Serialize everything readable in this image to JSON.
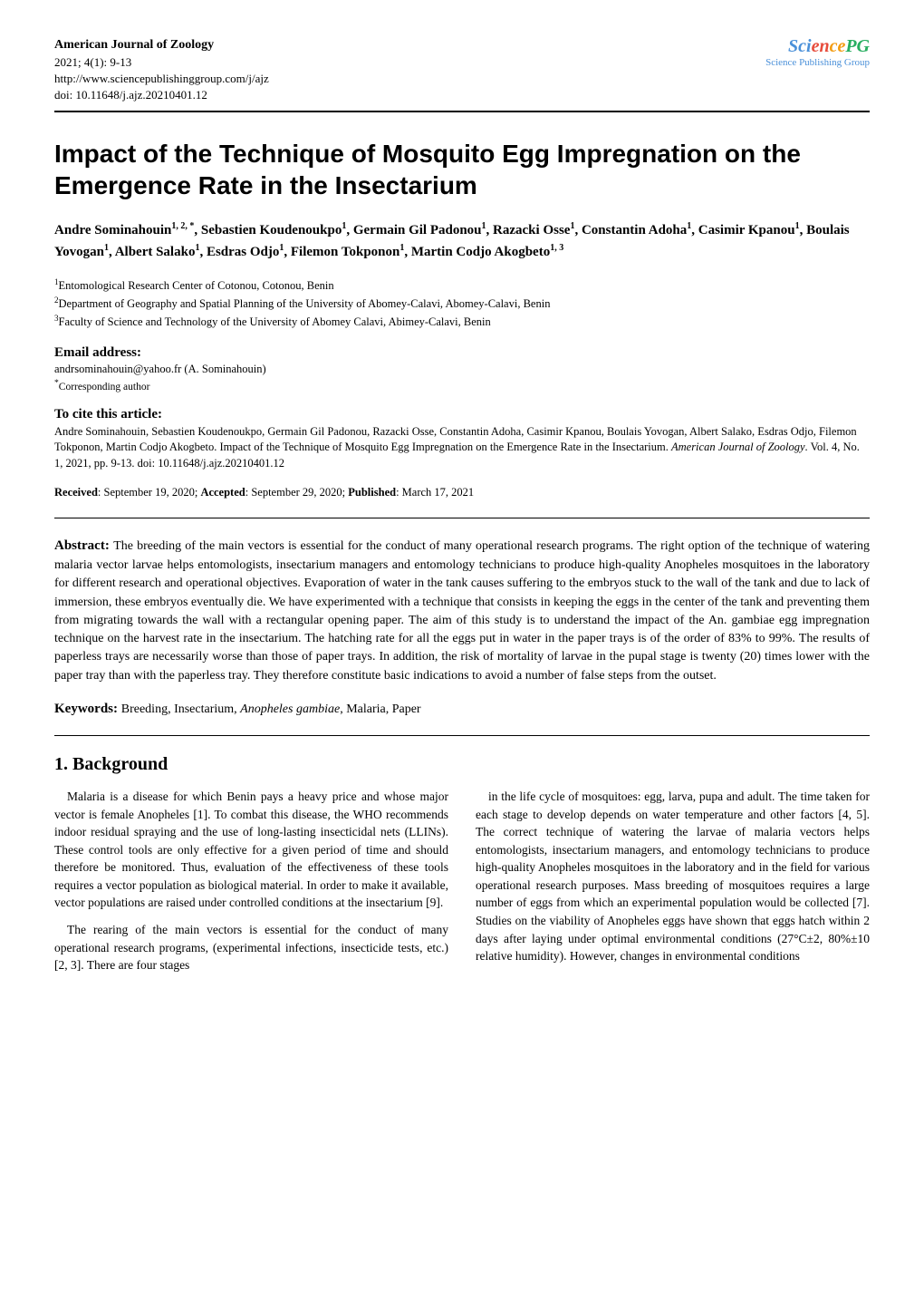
{
  "journal": {
    "title": "American Journal of Zoology",
    "issue": "2021; 4(1): 9-13",
    "url": "http://www.sciencepublishinggroup.com/j/ajz",
    "doi": "doi: 10.11648/j.ajz.20210401.12"
  },
  "logo": {
    "text": "SciencePG",
    "subtitle": "Science Publishing Group",
    "colors": {
      "part1": "#4a90d9",
      "part2": "#e74c3c",
      "part3": "#f39c12",
      "part4": "#27ae60",
      "subtitle": "#4a90d9"
    }
  },
  "article": {
    "title": "Impact of the Technique of Mosquito Egg Impregnation on the Emergence Rate in the Insectarium",
    "authors_html": "Andre Sominahouin<sup>1, 2, *</sup>, Sebastien Koudenoukpo<sup>1</sup>, Germain Gil Padonou<sup>1</sup>, Razacki Osse<sup>1</sup>, Constantin Adoha<sup>1</sup>, Casimir Kpanou<sup>1</sup>, Boulais Yovogan<sup>1</sup>, Albert Salako<sup>1</sup>, Esdras Odjo<sup>1</sup>, Filemon Tokponon<sup>1</sup>, Martin Codjo Akogbeto<sup>1, 3</sup>",
    "affiliations": [
      "<sup>1</sup>Entomological Research Center of Cotonou, Cotonou, Benin",
      "<sup>2</sup>Department of Geography and Spatial Planning of the University of Abomey-Calavi, Abomey-Calavi, Benin",
      "<sup>3</sup>Faculty of Science and Technology of the University of Abomey Calavi, Abimey-Calavi, Benin"
    ],
    "email_label": "Email address:",
    "email": "andrsominahouin@yahoo.fr (A. Sominahouin)",
    "corresponding": "*Corresponding author",
    "cite_label": "To cite this article:",
    "cite_text": "Andre Sominahouin, Sebastien Koudenoukpo, Germain Gil Padonou, Razacki Osse, Constantin Adoha, Casimir Kpanou, Boulais Yovogan, Albert Salako, Esdras Odjo, Filemon Tokponon, Martin Codjo Akogbeto. Impact of the Technique of Mosquito Egg Impregnation on the Emergence Rate in the Insectarium. ",
    "cite_journal": "American Journal of Zoology",
    "cite_suffix": ". Vol. 4, No. 1, 2021, pp. 9-13. doi: 10.11648/j.ajz.20210401.12",
    "dates": {
      "received_label": "Received",
      "received": ": September 19, 2020; ",
      "accepted_label": "Accepted",
      "accepted": ": September 29, 2020; ",
      "published_label": "Published",
      "published": ": March 17, 2021"
    },
    "abstract_label": "Abstract: ",
    "abstract": "The breeding of the main vectors is essential for the conduct of many operational research programs. The right option of the technique of watering malaria vector larvae helps entomologists, insectarium managers and entomology technicians to produce high-quality Anopheles mosquitoes in the laboratory for different research and operational objectives. Evaporation of water in the tank causes suffering to the embryos stuck to the wall of the tank and due to lack of immersion, these embryos eventually die. We have experimented with a technique that consists in keeping the eggs in the center of the tank and preventing them from migrating towards the wall with a rectangular opening paper. The aim of this study is to understand the impact of the An. gambiae egg impregnation technique on the harvest rate in the insectarium. The hatching rate for all the eggs put in water in the paper trays is of the order of 83% to 99%. The results of paperless trays are necessarily worse than those of paper trays. In addition, the risk of mortality of larvae in the pupal stage is twenty (20) times lower with the paper tray than with the paperless tray. They therefore constitute basic indications to avoid a number of false steps from the outset.",
    "keywords_label": "Keywords: ",
    "keywords_plain": "Breeding, Insectarium, ",
    "keywords_italic": "Anopheles gambiae",
    "keywords_suffix": ", Malaria, Paper"
  },
  "body": {
    "section_heading": "1. Background",
    "col1_p1": "Malaria is a disease for which Benin pays a heavy price and whose major vector is female Anopheles [1]. To combat this disease, the WHO recommends indoor residual spraying and the use of long-lasting insecticidal nets (LLINs). These control tools are only effective for a given period of time and should therefore be monitored. Thus, evaluation of the effectiveness of these tools requires a vector population as biological material. In order to make it available, vector populations are raised under controlled conditions at the insectarium [9].",
    "col1_p2": "The rearing of the main vectors is essential for the conduct of many operational research programs, (experimental infections, insecticide tests, etc.) [2, 3]. There are four stages",
    "col2_p1": "in the life cycle of mosquitoes: egg, larva, pupa and adult. The time taken for each stage to develop depends on water temperature and other factors [4, 5]. The correct technique of watering the larvae of malaria vectors helps entomologists, insectarium managers, and entomology technicians to produce high-quality Anopheles mosquitoes in the laboratory and in the field for various operational research purposes. Mass breeding of mosquitoes requires a large number of eggs from which an experimental population would be collected [7]. Studies on the viability of Anopheles eggs have shown that eggs hatch within 2 days after laying under optimal environmental conditions (27°C±2, 80%±10 relative humidity). However, changes in environmental conditions"
  },
  "styles": {
    "body_width": 1020,
    "body_bg": "#ffffff",
    "text_color": "#000000",
    "title_fontsize": 28,
    "author_fontsize": 15,
    "body_fontsize": 13.5,
    "abstract_fontsize": 14,
    "section_fontsize": 20
  }
}
